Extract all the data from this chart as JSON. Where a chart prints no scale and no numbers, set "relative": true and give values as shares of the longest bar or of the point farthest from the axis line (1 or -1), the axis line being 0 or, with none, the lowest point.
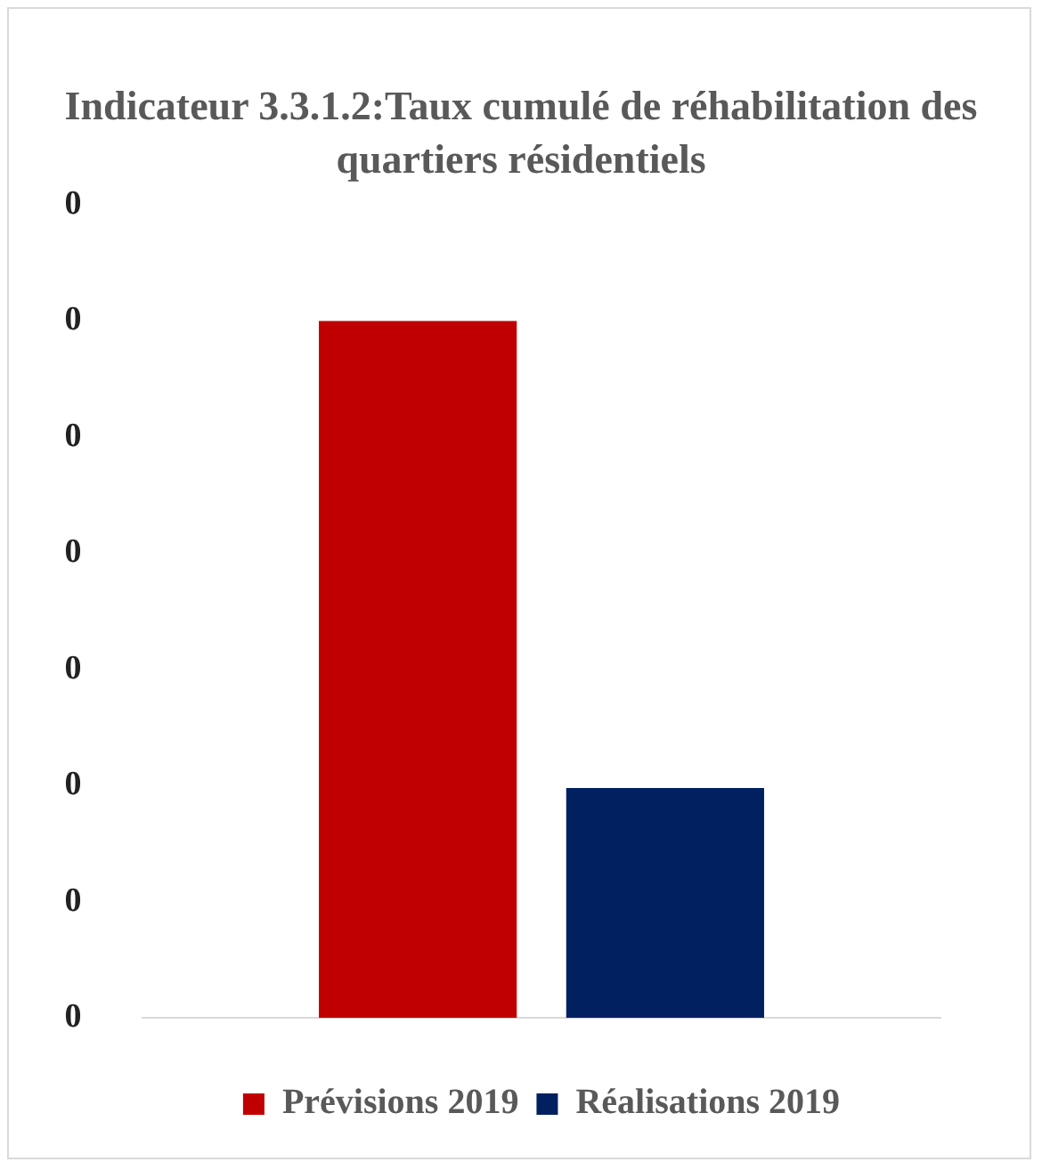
{
  "chart_data": {
    "type": "bar",
    "title": "Indicateur 3.3.1.2:Taux cumulé de réhabilitation des quartiers résidentiels",
    "categories": [
      null
    ],
    "series": [
      {
        "name": "Prévisions 2019",
        "color": "#c00000",
        "values": [
          1
        ]
      },
      {
        "name": "Réalisations 2019",
        "color": "#002060",
        "values": [
          0.33
        ]
      }
    ],
    "relative": true,
    "annotations": [
      "0",
      "0",
      "0",
      "0",
      "0",
      "0",
      "0",
      "0"
    ],
    "grid": false,
    "legend": "bottom"
  }
}
